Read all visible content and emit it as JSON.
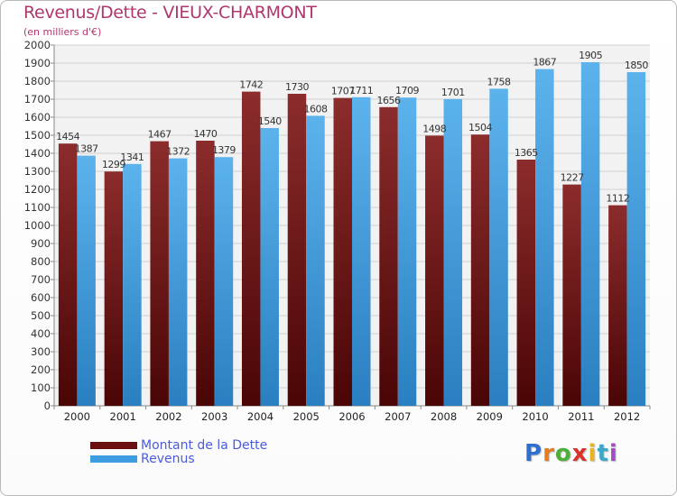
{
  "header": {
    "title": "Revenus/Dette - VIEUX-CHARMONT",
    "subtitle": "(en milliers d'€)"
  },
  "legend": {
    "items": [
      {
        "label": "Montant de la Dette",
        "color": "#7a1a1a"
      },
      {
        "label": "Revenus",
        "color": "#3d9de0"
      }
    ]
  },
  "logo": {
    "letters": [
      "P",
      "r",
      "o",
      "x",
      "i",
      "t",
      "i"
    ],
    "colors": [
      "#2f6fd0",
      "#e67c1f",
      "#4fae3a",
      "#d8322a",
      "#e8b51c",
      "#3aa8c8",
      "#a14fbf"
    ]
  },
  "chart_data": {
    "type": "bar",
    "categories": [
      "2000",
      "2001",
      "2002",
      "2003",
      "2004",
      "2005",
      "2006",
      "2007",
      "2008",
      "2009",
      "2010",
      "2011",
      "2012"
    ],
    "series": [
      {
        "name": "Montant de la Dette",
        "values": [
          1454,
          1299,
          1467,
          1470,
          1742,
          1730,
          1707,
          1656,
          1498,
          1504,
          1365,
          1227,
          1112
        ]
      },
      {
        "name": "Revenus",
        "values": [
          1387,
          1341,
          1372,
          1379,
          1540,
          1608,
          1711,
          1709,
          1701,
          1758,
          1867,
          1905,
          1850
        ]
      }
    ],
    "ylim": [
      0,
      2000
    ],
    "ytick_step": 100,
    "grid": true,
    "legend_position": "bottom-left"
  }
}
